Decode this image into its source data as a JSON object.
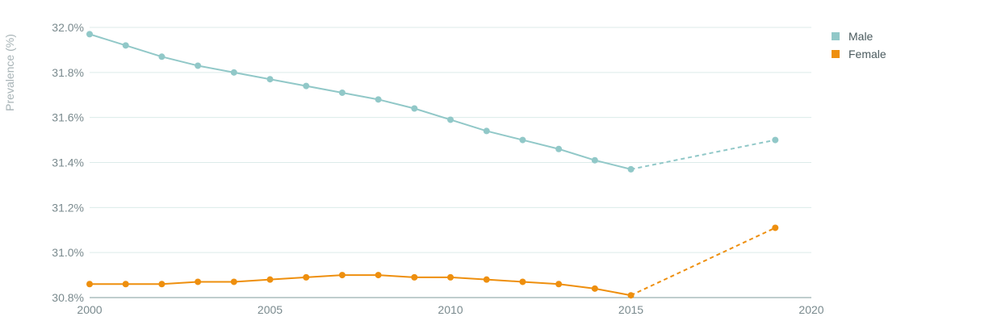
{
  "chart_data": {
    "type": "line",
    "title": "",
    "xlabel": "",
    "ylabel": "Prevalence (%)",
    "xlim": [
      2000,
      2020
    ],
    "ylim": [
      30.8,
      32.0
    ],
    "x_ticks": [
      "2000",
      "2005",
      "2010",
      "2015",
      "2020"
    ],
    "y_ticks": [
      "30.8%",
      "31.0%",
      "31.2%",
      "31.4%",
      "31.6%",
      "31.8%",
      "32.0%"
    ],
    "grid": true,
    "legend_position": "top-right",
    "series": [
      {
        "name": "Male",
        "color": "#91c8c8",
        "x": [
          2000,
          2001,
          2002,
          2003,
          2004,
          2005,
          2006,
          2007,
          2008,
          2009,
          2010,
          2011,
          2012,
          2013,
          2014,
          2015
        ],
        "values": [
          31.97,
          31.92,
          31.87,
          31.83,
          31.8,
          31.77,
          31.74,
          31.71,
          31.68,
          31.64,
          31.59,
          31.54,
          31.5,
          31.46,
          31.41,
          31.37
        ],
        "projection": {
          "x": [
            2015,
            2019
          ],
          "values": [
            31.37,
            31.5
          ],
          "style": "dashed"
        }
      },
      {
        "name": "Female",
        "color": "#ee8f0e",
        "x": [
          2000,
          2001,
          2002,
          2003,
          2004,
          2005,
          2006,
          2007,
          2008,
          2009,
          2010,
          2011,
          2012,
          2013,
          2014,
          2015
        ],
        "values": [
          30.86,
          30.86,
          30.86,
          30.87,
          30.87,
          30.88,
          30.89,
          30.9,
          30.9,
          30.89,
          30.89,
          30.88,
          30.87,
          30.86,
          30.84,
          30.81
        ],
        "projection": {
          "x": [
            2015,
            2019
          ],
          "values": [
            30.81,
            31.11
          ],
          "style": "dashed"
        }
      }
    ]
  }
}
